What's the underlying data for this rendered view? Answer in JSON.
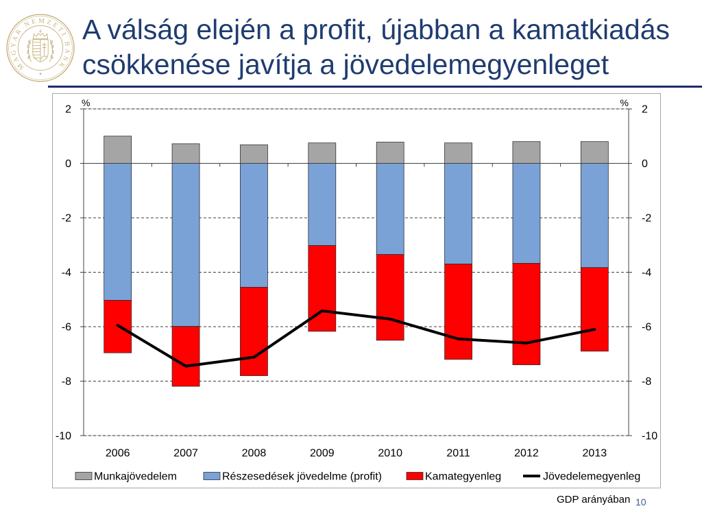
{
  "logo": {
    "text": "MAGYAR NEMZETI BANK",
    "color": "#c4b27e"
  },
  "slide": {
    "title": "A válság elején a profit, újabban a kamatkiadás csökkenése javítja a jövedelemegyenleget",
    "title_color": "#1f3c70",
    "rule_color": "#1c2c6a",
    "footnote": "GDP arányában",
    "page_number": "10",
    "page_number_color": "#3a5a8c"
  },
  "chart_data": {
    "type": "bar",
    "stacked": true,
    "categories": [
      "2006",
      "2007",
      "2008",
      "2009",
      "2010",
      "2011",
      "2012",
      "2013"
    ],
    "y_unit_left": "%",
    "y_unit_right": "%",
    "ylim": [
      -10,
      2
    ],
    "yticks": [
      2,
      0,
      -2,
      -4,
      -6,
      -8,
      -10
    ],
    "secondary_axis_mirrors_primary": true,
    "grid": true,
    "legend": "bottom",
    "series": [
      {
        "name": "Munkajövedelem",
        "type": "bar",
        "color": "#a5a5a5",
        "values": [
          1.0,
          0.72,
          0.68,
          0.75,
          0.78,
          0.75,
          0.8,
          0.8
        ]
      },
      {
        "name": "Részesedések jövedelme (profit)",
        "type": "bar",
        "color": "#7aa2d6",
        "values": [
          -5.03,
          -5.99,
          -4.55,
          -3.02,
          -3.35,
          -3.7,
          -3.67,
          -3.83
        ]
      },
      {
        "name": "Kamategyenleg",
        "type": "bar",
        "color": "#ff0000",
        "values": [
          -1.93,
          -2.2,
          -3.25,
          -3.15,
          -3.15,
          -3.5,
          -3.73,
          -3.07
        ]
      },
      {
        "name": "Jövedelemegyenleg",
        "type": "line",
        "color": "#000000",
        "values": [
          -5.95,
          -7.45,
          -7.12,
          -5.42,
          -5.72,
          -6.45,
          -6.6,
          -6.1
        ]
      }
    ]
  }
}
